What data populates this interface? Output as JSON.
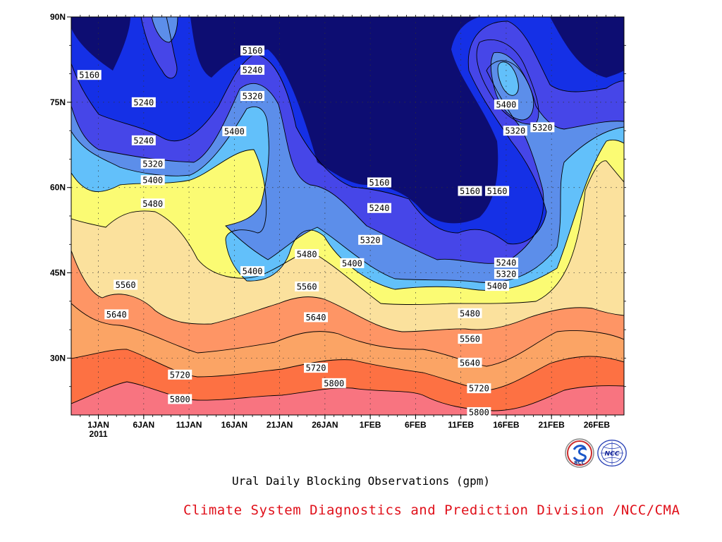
{
  "chart_data": {
    "type": "heatmap",
    "title": "Ural Daily Blocking Observations (gpm)",
    "x_ticks": [
      "1JAN",
      "6JAN",
      "11JAN",
      "16JAN",
      "21JAN",
      "26JAN",
      "1FEB",
      "6FEB",
      "11FEB",
      "16FEB",
      "21FEB",
      "26FEB"
    ],
    "x_year_label": "2011",
    "x_range": [
      "2010-12-29",
      "2011-02-28"
    ],
    "y_ticks": [
      "90N",
      "75N",
      "60N",
      "45N",
      "30N"
    ],
    "y_range": [
      20,
      90
    ],
    "grid": true,
    "levels": [
      5160,
      5240,
      5320,
      5400,
      5480,
      5560,
      5640,
      5720,
      5800
    ],
    "band_colors": [
      "#0d0d72",
      "#1530e6",
      "#4646e8",
      "#5c8eea",
      "#62c0fa",
      "#fbfb73",
      "#fbe19d",
      "#fba465",
      "#fd7143",
      "#f87480"
    ],
    "contour_labels": [
      {
        "text": "5160",
        "date": "2010-12-31",
        "lat": 79.8
      },
      {
        "text": "5240",
        "date": "2011-01-06",
        "lat": 75.0
      },
      {
        "text": "5240",
        "date": "2011-01-06",
        "lat": 68.3
      },
      {
        "text": "5320",
        "date": "2011-01-07",
        "lat": 64.2
      },
      {
        "text": "5400",
        "date": "2011-01-07",
        "lat": 61.3
      },
      {
        "text": "5480",
        "date": "2011-01-07",
        "lat": 57.2
      },
      {
        "text": "5160",
        "date": "2011-01-18",
        "lat": 84.1
      },
      {
        "text": "5240",
        "date": "2011-01-18",
        "lat": 80.7
      },
      {
        "text": "5320",
        "date": "2011-01-18",
        "lat": 76.1
      },
      {
        "text": "5400",
        "date": "2011-01-16",
        "lat": 69.9
      },
      {
        "text": "5400",
        "date": "2011-01-18",
        "lat": 45.3
      },
      {
        "text": "5480",
        "date": "2011-01-24",
        "lat": 48.3
      },
      {
        "text": "5560",
        "date": "2011-01-24",
        "lat": 42.6
      },
      {
        "text": "5560",
        "date": "2011-01-04",
        "lat": 42.9
      },
      {
        "text": "5640",
        "date": "2011-01-03",
        "lat": 37.7
      },
      {
        "text": "5640",
        "date": "2011-01-25",
        "lat": 37.2
      },
      {
        "text": "5720",
        "date": "2011-01-10",
        "lat": 27.1
      },
      {
        "text": "5720",
        "date": "2011-01-25",
        "lat": 28.3
      },
      {
        "text": "5800",
        "date": "2011-01-10",
        "lat": 22.8
      },
      {
        "text": "5800",
        "date": "2011-01-27",
        "lat": 25.6
      },
      {
        "text": "5160",
        "date": "2011-02-01",
        "lat": 60.9
      },
      {
        "text": "5240",
        "date": "2011-02-01",
        "lat": 56.4
      },
      {
        "text": "5320",
        "date": "2011-01-31",
        "lat": 50.8
      },
      {
        "text": "5400",
        "date": "2011-01-29",
        "lat": 46.7
      },
      {
        "text": "5160",
        "date": "2011-02-11",
        "lat": 59.4
      },
      {
        "text": "5160",
        "date": "2011-02-14",
        "lat": 59.4
      },
      {
        "text": "5400",
        "date": "2011-02-15",
        "lat": 74.6
      },
      {
        "text": "5320",
        "date": "2011-02-16",
        "lat": 70.0
      },
      {
        "text": "5320",
        "date": "2011-02-19",
        "lat": 70.6
      },
      {
        "text": "5240",
        "date": "2011-02-15",
        "lat": 46.8
      },
      {
        "text": "5320",
        "date": "2011-02-15",
        "lat": 44.8
      },
      {
        "text": "5400",
        "date": "2011-02-14",
        "lat": 42.7
      },
      {
        "text": "5480",
        "date": "2011-02-11",
        "lat": 37.9
      },
      {
        "text": "5560",
        "date": "2011-02-11",
        "lat": 33.4
      },
      {
        "text": "5640",
        "date": "2011-02-11",
        "lat": 29.2
      },
      {
        "text": "5720",
        "date": "2011-02-12",
        "lat": 24.7
      },
      {
        "text": "5800",
        "date": "2011-02-12",
        "lat": 20.5
      }
    ]
  },
  "footer": {
    "credit": "Climate System Diagnostics and Prediction Division /NCC/CMA",
    "logo_left": "BCC",
    "logo_right": "NCC"
  }
}
